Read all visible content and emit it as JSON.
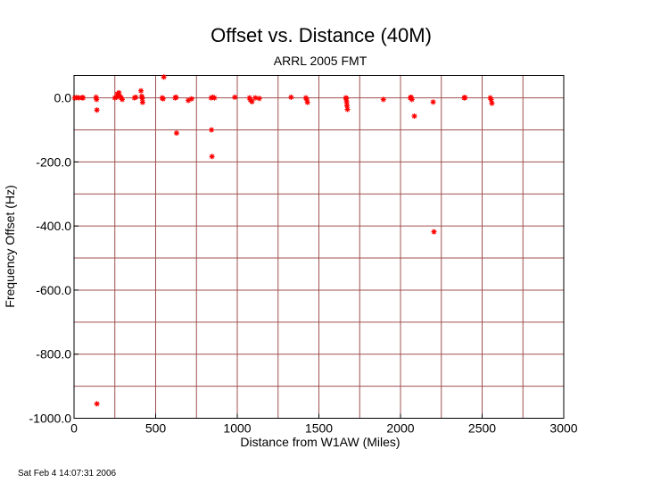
{
  "chart_data": {
    "type": "scatter",
    "title": "Offset vs. Distance (40M)",
    "subtitle": "ARRL 2005 FMT",
    "xlabel": "Distance from W1AW (Miles)",
    "ylabel": "Frequency Offset (Hz)",
    "xlim": [
      0,
      3000
    ],
    "ylim": [
      -1000,
      70
    ],
    "x_ticks": [
      0,
      500,
      1000,
      1500,
      2000,
      2500,
      3000
    ],
    "x_tick_labels": [
      "0",
      "500",
      "1000",
      "1500",
      "2000",
      "2500",
      "3000"
    ],
    "y_ticks": [
      0,
      -200,
      -400,
      -600,
      -800,
      -1000
    ],
    "y_tick_labels": [
      "0.0",
      "-200.0",
      "-400.0",
      "-600.0",
      "-800.0",
      "-1000.0"
    ],
    "x_gridlines": [
      250,
      500,
      750,
      1000,
      1250,
      1500,
      1750,
      2000,
      2250,
      2500,
      2750
    ],
    "y_gridlines": [
      0,
      -100,
      -200,
      -300,
      -400,
      -500,
      -600,
      -700,
      -800,
      -900
    ],
    "grid": true,
    "series": [
      {
        "color": "#ff0000",
        "marker": "asterisk",
        "points": [
          [
            5,
            0
          ],
          [
            15,
            1
          ],
          [
            30,
            0
          ],
          [
            50,
            1
          ],
          [
            55,
            0
          ],
          [
            135,
            2
          ],
          [
            138,
            -5
          ],
          [
            140,
            -38
          ],
          [
            140,
            -955
          ],
          [
            250,
            0
          ],
          [
            260,
            2
          ],
          [
            265,
            12
          ],
          [
            275,
            16
          ],
          [
            280,
            5
          ],
          [
            290,
            0
          ],
          [
            295,
            -5
          ],
          [
            370,
            0
          ],
          [
            378,
            2
          ],
          [
            410,
            22
          ],
          [
            415,
            5
          ],
          [
            418,
            -2
          ],
          [
            420,
            -14
          ],
          [
            540,
            0
          ],
          [
            545,
            -3
          ],
          [
            550,
            65
          ],
          [
            620,
            0
          ],
          [
            625,
            2
          ],
          [
            628,
            -110
          ],
          [
            700,
            -8
          ],
          [
            720,
            -3
          ],
          [
            840,
            0
          ],
          [
            842,
            -100
          ],
          [
            845,
            -183
          ],
          [
            850,
            2
          ],
          [
            860,
            0
          ],
          [
            985,
            2
          ],
          [
            1075,
            0
          ],
          [
            1080,
            -6
          ],
          [
            1090,
            -12
          ],
          [
            1110,
            0
          ],
          [
            1135,
            -2
          ],
          [
            1330,
            2
          ],
          [
            1420,
            0
          ],
          [
            1425,
            -4
          ],
          [
            1430,
            -14
          ],
          [
            1665,
            0
          ],
          [
            1668,
            -2
          ],
          [
            1670,
            -12
          ],
          [
            1672,
            -24
          ],
          [
            1675,
            -36
          ],
          [
            1895,
            -5
          ],
          [
            2060,
            0
          ],
          [
            2065,
            2
          ],
          [
            2070,
            -5
          ],
          [
            2085,
            -57
          ],
          [
            2200,
            -13
          ],
          [
            2205,
            -418
          ],
          [
            2390,
            0
          ],
          [
            2395,
            1
          ],
          [
            2550,
            0
          ],
          [
            2555,
            -5
          ],
          [
            2560,
            -17
          ]
        ]
      }
    ]
  },
  "footer": {
    "timestamp": "Sat Feb  4 14:07:31 2006"
  }
}
